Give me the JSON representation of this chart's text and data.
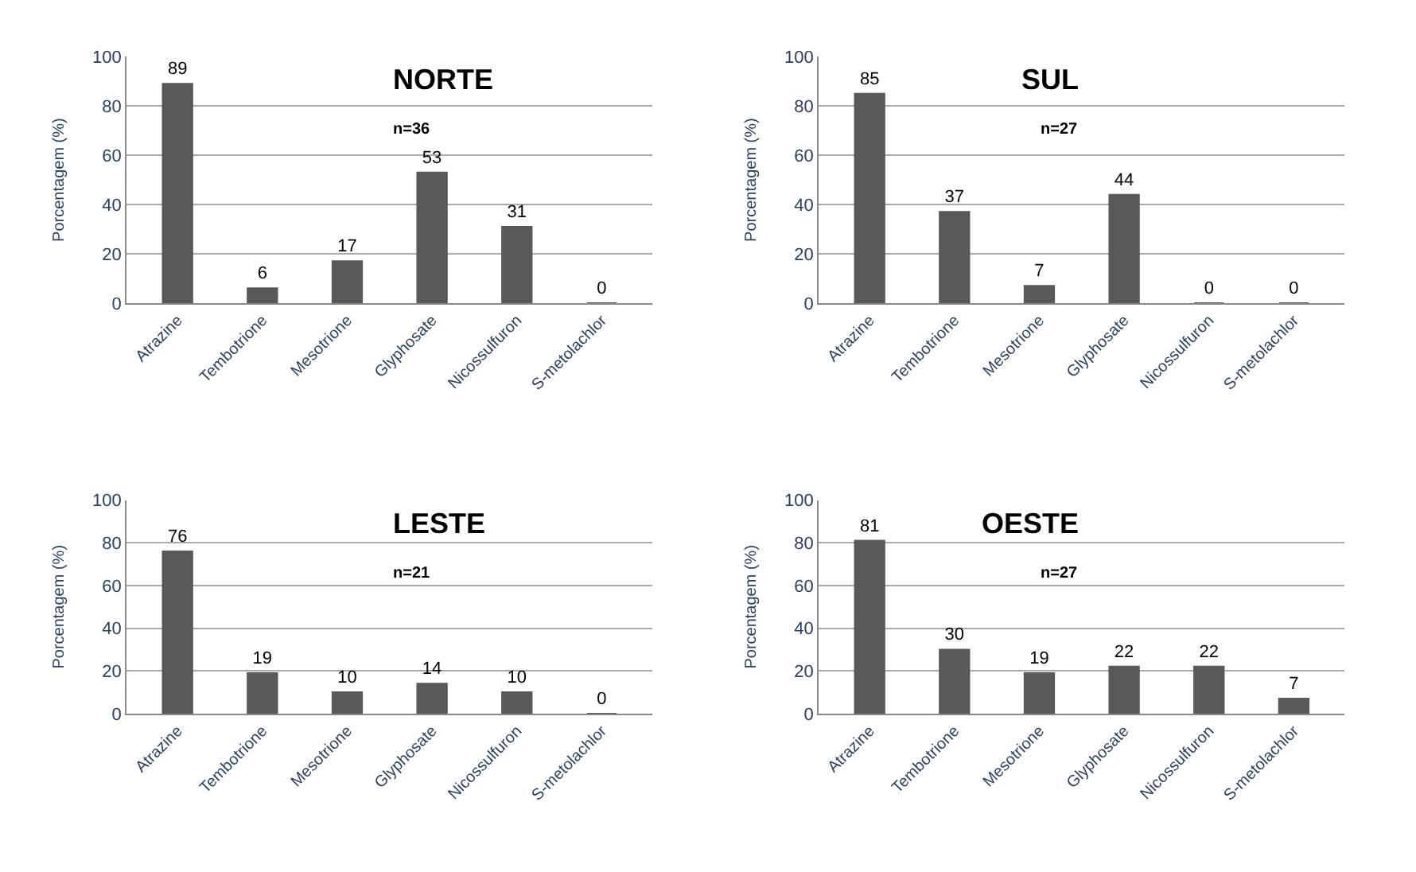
{
  "chart_data": [
    {
      "type": "bar",
      "title": "NORTE",
      "subtitle": "n=36",
      "ylabel": "Porcentagem (%)",
      "categories": [
        "Atrazine",
        "Tembotrione",
        "Mesotrione",
        "Glyphosate",
        "Nicossulfuron",
        "S-metolachlor"
      ],
      "values": [
        89,
        6,
        17,
        53,
        31,
        0
      ],
      "color": "#595959",
      "ylim": [
        0,
        100
      ],
      "yticks": [
        0,
        20,
        40,
        60,
        80,
        100
      ],
      "grid": "y",
      "data_labels": true
    },
    {
      "type": "bar",
      "title": "SUL",
      "subtitle": "n=27",
      "ylabel": "Porcentagem (%)",
      "categories": [
        "Atrazine",
        "Tembotrione",
        "Mesotrione",
        "Glyphosate",
        "Nicossulfuron",
        "S-metolachlor"
      ],
      "values": [
        85,
        37,
        7,
        44,
        0,
        0
      ],
      "color": "#595959",
      "ylim": [
        0,
        100
      ],
      "yticks": [
        0,
        20,
        40,
        60,
        80,
        100
      ],
      "grid": "y",
      "data_labels": true
    },
    {
      "type": "bar",
      "title": "LESTE",
      "subtitle": "n=21",
      "ylabel": "Porcentagem (%)",
      "categories": [
        "Atrazine",
        "Tembotrione",
        "Mesotrione",
        "Glyphosate",
        "Nicossulfuron",
        "S-metolachlor"
      ],
      "values": [
        76,
        19,
        10,
        14,
        10,
        0
      ],
      "color": "#595959",
      "ylim": [
        0,
        100
      ],
      "yticks": [
        0,
        20,
        40,
        60,
        80,
        100
      ],
      "grid": "y",
      "data_labels": true
    },
    {
      "type": "bar",
      "title": "OESTE",
      "subtitle": "n=27",
      "ylabel": "Porcentagem (%)",
      "categories": [
        "Atrazine",
        "Tembotrione",
        "Mesotrione",
        "Glyphosate",
        "Nicossulfuron",
        "S-metolachlor"
      ],
      "values": [
        81,
        30,
        19,
        22,
        22,
        7
      ],
      "color": "#595959",
      "ylim": [
        0,
        100
      ],
      "yticks": [
        0,
        20,
        40,
        60,
        80,
        100
      ],
      "grid": "y",
      "data_labels": true
    }
  ]
}
